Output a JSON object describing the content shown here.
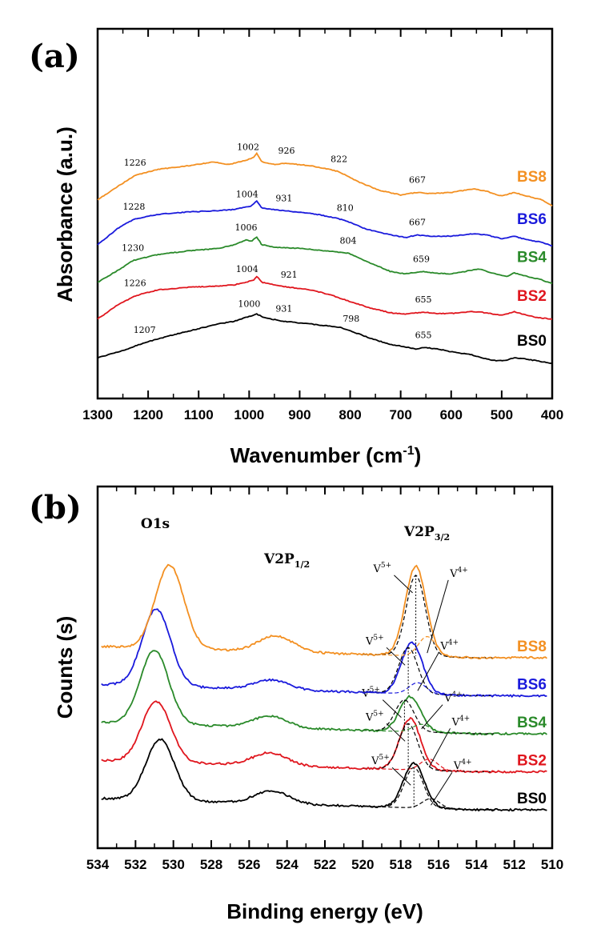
{
  "chart_data": [
    {
      "panel": "(a)",
      "type": "line",
      "xlabel": "Wavenumber (cm-1)",
      "xlabel_main": "Wavenumber (cm",
      "xlabel_sup": "-1",
      "xlabel_end": ")",
      "ylabel": "Absorbance (a.u.)",
      "xlim": [
        1300,
        400
      ],
      "x_ticks": [
        1300,
        1200,
        1100,
        1000,
        900,
        800,
        700,
        600,
        500,
        400
      ],
      "series": [
        {
          "name": "BS0",
          "color": "#000000",
          "offset": 0,
          "x": [
            1300,
            1250,
            1207,
            1150,
            1100,
            1060,
            1030,
            1000,
            985,
            970,
            931,
            880,
            820,
            798,
            760,
            720,
            690,
            670,
            655,
            630,
            600,
            560,
            530,
            510,
            490,
            475,
            460,
            430,
            400
          ],
          "y": [
            0.3,
            0.42,
            0.55,
            0.68,
            0.78,
            0.86,
            0.9,
            0.98,
            1.02,
            0.96,
            0.9,
            0.86,
            0.8,
            0.74,
            0.62,
            0.52,
            0.48,
            0.44,
            0.47,
            0.45,
            0.4,
            0.35,
            0.28,
            0.25,
            0.26,
            0.3,
            0.29,
            0.25,
            0.21
          ],
          "annotations": [
            {
              "x": 1207,
              "label": "1207"
            },
            {
              "x": 1000,
              "label": "1000"
            },
            {
              "x": 931,
              "label": "931"
            },
            {
              "x": 798,
              "label": "798"
            },
            {
              "x": 655,
              "label": "655"
            }
          ]
        },
        {
          "name": "BS2",
          "color": "#e0161e",
          "offset": 0.62,
          "x": [
            1300,
            1260,
            1226,
            1180,
            1120,
            1060,
            1030,
            1004,
            990,
            985,
            975,
            950,
            921,
            880,
            840,
            798,
            760,
            720,
            690,
            655,
            630,
            600,
            560,
            540,
            500,
            475,
            460,
            430,
            400
          ],
          "y": [
            0.32,
            0.55,
            0.7,
            0.8,
            0.84,
            0.86,
            0.88,
            0.93,
            0.96,
            1.02,
            0.92,
            0.88,
            0.84,
            0.8,
            0.72,
            0.6,
            0.5,
            0.42,
            0.4,
            0.43,
            0.41,
            0.41,
            0.44,
            0.43,
            0.38,
            0.44,
            0.4,
            0.34,
            0.32
          ],
          "annotations": [
            {
              "x": 1226,
              "label": "1226"
            },
            {
              "x": 1004,
              "label": "1004"
            },
            {
              "x": 921,
              "label": "921"
            },
            {
              "x": 655,
              "label": "655"
            }
          ]
        },
        {
          "name": "BS4",
          "color": "#2a8a2a",
          "offset": 1.24,
          "x": [
            1300,
            1260,
            1230,
            1180,
            1120,
            1060,
            1030,
            1006,
            995,
            985,
            975,
            950,
            900,
            850,
            804,
            760,
            720,
            690,
            659,
            630,
            600,
            560,
            545,
            520,
            490,
            475,
            450,
            420,
            400
          ],
          "y": [
            0.3,
            0.5,
            0.66,
            0.76,
            0.82,
            0.86,
            0.92,
            1.0,
            0.98,
            1.05,
            0.92,
            0.88,
            0.86,
            0.82,
            0.78,
            0.62,
            0.48,
            0.44,
            0.48,
            0.45,
            0.44,
            0.5,
            0.52,
            0.46,
            0.4,
            0.46,
            0.4,
            0.34,
            0.28
          ],
          "annotations": [
            {
              "x": 1230,
              "label": "1230"
            },
            {
              "x": 1006,
              "label": "1006"
            },
            {
              "x": 804,
              "label": "804"
            },
            {
              "x": 659,
              "label": "659"
            }
          ]
        },
        {
          "name": "BS6",
          "color": "#1a1adc",
          "offset": 1.88,
          "x": [
            1300,
            1260,
            1228,
            1180,
            1120,
            1060,
            1030,
            1004,
            995,
            985,
            975,
            950,
            931,
            880,
            840,
            810,
            770,
            720,
            690,
            667,
            640,
            600,
            555,
            530,
            500,
            475,
            450,
            420,
            400
          ],
          "y": [
            0.28,
            0.55,
            0.7,
            0.78,
            0.82,
            0.84,
            0.86,
            0.9,
            0.92,
            1.0,
            0.88,
            0.86,
            0.84,
            0.8,
            0.74,
            0.68,
            0.54,
            0.44,
            0.4,
            0.44,
            0.42,
            0.42,
            0.46,
            0.44,
            0.38,
            0.42,
            0.36,
            0.32,
            0.26
          ],
          "annotations": [
            {
              "x": 1228,
              "label": "1228"
            },
            {
              "x": 1004,
              "label": "1004"
            },
            {
              "x": 931,
              "label": "931"
            },
            {
              "x": 810,
              "label": "810"
            },
            {
              "x": 667,
              "label": "667"
            }
          ]
        },
        {
          "name": "BS8",
          "color": "#f39022",
          "offset": 2.5,
          "x": [
            1300,
            1260,
            1226,
            1180,
            1120,
            1070,
            1040,
            1002,
            990,
            985,
            975,
            950,
            926,
            880,
            840,
            822,
            780,
            740,
            700,
            667,
            640,
            600,
            555,
            530,
            500,
            475,
            450,
            420,
            400
          ],
          "y": [
            0.4,
            0.62,
            0.8,
            0.9,
            0.96,
            1.02,
            0.98,
            1.06,
            1.1,
            1.16,
            1.02,
            0.98,
            1.0,
            0.96,
            0.9,
            0.86,
            0.68,
            0.55,
            0.48,
            0.52,
            0.5,
            0.52,
            0.58,
            0.54,
            0.46,
            0.52,
            0.46,
            0.4,
            0.3
          ],
          "annotations": [
            {
              "x": 1226,
              "label": "1226"
            },
            {
              "x": 1002,
              "label": "1002"
            },
            {
              "x": 926,
              "label": "926"
            },
            {
              "x": 822,
              "label": "822"
            },
            {
              "x": 667,
              "label": "667"
            }
          ]
        }
      ]
    },
    {
      "panel": "(b)",
      "type": "line",
      "xlabel": "Binding energy (eV)",
      "ylabel": "Counts (s)",
      "xlim": [
        534,
        510
      ],
      "x_ticks": [
        534,
        532,
        530,
        528,
        526,
        524,
        522,
        520,
        518,
        516,
        514,
        512,
        510
      ],
      "peak_names": {
        "o1s": "O1s",
        "v2p12_main": "V2P",
        "v2p12_sub": "1/2",
        "v2p32_main": "V2P",
        "v2p32_sub": "3/2"
      },
      "component_labels": {
        "v5_main": "V",
        "v5_sup": "5+",
        "v4_main": "V",
        "v4_sup": "4+"
      },
      "series": [
        {
          "name": "BS0",
          "color": "#000000",
          "offset": 0,
          "o1s_center": 530.7,
          "o1s_height": 0.95,
          "v2p12_center": 524.8,
          "v2p12_height": 0.2,
          "v2p32_center": 517.3,
          "v2p32_height": 0.7,
          "v5_center": 517.3,
          "v4_center": 516.4
        },
        {
          "name": "BS2",
          "color": "#e0161e",
          "offset": 1,
          "o1s_center": 530.9,
          "o1s_height": 0.95,
          "v2p12_center": 524.9,
          "v2p12_height": 0.2,
          "v2p32_center": 517.5,
          "v2p32_height": 0.8,
          "v5_center": 517.6,
          "v4_center": 516.5
        },
        {
          "name": "BS4",
          "color": "#2a8a2a",
          "offset": 2,
          "o1s_center": 531.0,
          "o1s_height": 1.15,
          "v2p12_center": 524.9,
          "v2p12_height": 0.18,
          "v2p32_center": 517.5,
          "v2p32_height": 0.55,
          "v5_center": 517.8,
          "v4_center": 516.9
        },
        {
          "name": "BS6",
          "color": "#1a1adc",
          "offset": 3,
          "o1s_center": 530.9,
          "o1s_height": 1.2,
          "v2p12_center": 524.8,
          "v2p12_height": 0.15,
          "v2p32_center": 517.4,
          "v2p32_height": 0.8,
          "v5_center": 517.6,
          "v4_center": 517.1
        },
        {
          "name": "BS8",
          "color": "#f39022",
          "offset": 4,
          "o1s_center": 530.2,
          "o1s_height": 1.3,
          "v2p12_center": 524.6,
          "v2p12_height": 0.25,
          "v2p32_center": 517.2,
          "v2p32_height": 1.4,
          "v5_center": 517.2,
          "v4_center": 516.6
        }
      ]
    }
  ]
}
